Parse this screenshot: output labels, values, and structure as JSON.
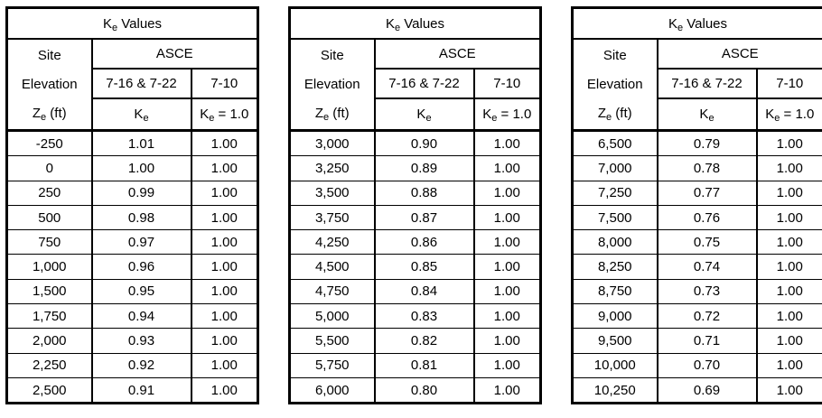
{
  "colors": {
    "background": "#ffffff",
    "border": "#000000",
    "text": "#000000"
  },
  "header": {
    "title_pre": "K",
    "sub_e": "e",
    "title_post": " Values",
    "site_line1": "Site",
    "site_line2": "Elevation",
    "z_pre": "Z",
    "z_post": " (ft)",
    "asce": "ASCE",
    "col_716": "7-16 & 7-22",
    "col_710": "7-10",
    "ke10_post": " = 1.0"
  },
  "tables": [
    {
      "rows": [
        {
          "elevation": "-250",
          "ke": "1.01",
          "ke_710": "1.00"
        },
        {
          "elevation": "0",
          "ke": "1.00",
          "ke_710": "1.00"
        },
        {
          "elevation": "250",
          "ke": "0.99",
          "ke_710": "1.00"
        },
        {
          "elevation": "500",
          "ke": "0.98",
          "ke_710": "1.00"
        },
        {
          "elevation": "750",
          "ke": "0.97",
          "ke_710": "1.00"
        },
        {
          "elevation": "1,000",
          "ke": "0.96",
          "ke_710": "1.00"
        },
        {
          "elevation": "1,500",
          "ke": "0.95",
          "ke_710": "1.00"
        },
        {
          "elevation": "1,750",
          "ke": "0.94",
          "ke_710": "1.00"
        },
        {
          "elevation": "2,000",
          "ke": "0.93",
          "ke_710": "1.00"
        },
        {
          "elevation": "2,250",
          "ke": "0.92",
          "ke_710": "1.00"
        },
        {
          "elevation": "2,500",
          "ke": "0.91",
          "ke_710": "1.00"
        }
      ]
    },
    {
      "rows": [
        {
          "elevation": "3,000",
          "ke": "0.90",
          "ke_710": "1.00"
        },
        {
          "elevation": "3,250",
          "ke": "0.89",
          "ke_710": "1.00"
        },
        {
          "elevation": "3,500",
          "ke": "0.88",
          "ke_710": "1.00"
        },
        {
          "elevation": "3,750",
          "ke": "0.87",
          "ke_710": "1.00"
        },
        {
          "elevation": "4,250",
          "ke": "0.86",
          "ke_710": "1.00"
        },
        {
          "elevation": "4,500",
          "ke": "0.85",
          "ke_710": "1.00"
        },
        {
          "elevation": "4,750",
          "ke": "0.84",
          "ke_710": "1.00"
        },
        {
          "elevation": "5,000",
          "ke": "0.83",
          "ke_710": "1.00"
        },
        {
          "elevation": "5,500",
          "ke": "0.82",
          "ke_710": "1.00"
        },
        {
          "elevation": "5,750",
          "ke": "0.81",
          "ke_710": "1.00"
        },
        {
          "elevation": "6,000",
          "ke": "0.80",
          "ke_710": "1.00"
        }
      ]
    },
    {
      "rows": [
        {
          "elevation": "6,500",
          "ke": "0.79",
          "ke_710": "1.00"
        },
        {
          "elevation": "7,000",
          "ke": "0.78",
          "ke_710": "1.00"
        },
        {
          "elevation": "7,250",
          "ke": "0.77",
          "ke_710": "1.00"
        },
        {
          "elevation": "7,500",
          "ke": "0.76",
          "ke_710": "1.00"
        },
        {
          "elevation": "8,000",
          "ke": "0.75",
          "ke_710": "1.00"
        },
        {
          "elevation": "8,250",
          "ke": "0.74",
          "ke_710": "1.00"
        },
        {
          "elevation": "8,750",
          "ke": "0.73",
          "ke_710": "1.00"
        },
        {
          "elevation": "9,000",
          "ke": "0.72",
          "ke_710": "1.00"
        },
        {
          "elevation": "9,500",
          "ke": "0.71",
          "ke_710": "1.00"
        },
        {
          "elevation": "10,000",
          "ke": "0.70",
          "ke_710": "1.00"
        },
        {
          "elevation": "10,250",
          "ke": "0.69",
          "ke_710": "1.00"
        }
      ]
    }
  ]
}
